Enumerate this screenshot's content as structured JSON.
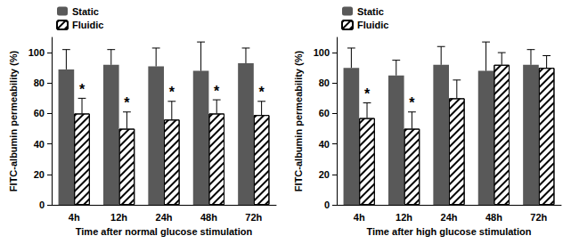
{
  "chart_data": [
    {
      "type": "bar",
      "xlabel": "Time after normal glucose stimulation",
      "ylabel": "FITC-albumin permeability (%)",
      "categories": [
        "4h",
        "12h",
        "24h",
        "48h",
        "72h"
      ],
      "series": [
        {
          "name": "Static",
          "color": "#595959",
          "values": [
            89,
            92,
            91,
            88,
            93
          ],
          "errors": [
            13,
            10,
            12,
            19,
            10
          ]
        },
        {
          "name": "Fluidic",
          "color": "#ffffff",
          "marker": "hatch",
          "values": [
            60,
            50,
            56,
            60,
            59
          ],
          "errors": [
            10,
            11,
            12,
            9,
            9
          ],
          "annotations": [
            "*",
            "*",
            "*",
            "*",
            "*"
          ]
        }
      ],
      "ylim": [
        0,
        110
      ],
      "yticks": [
        0,
        20,
        40,
        60,
        80,
        100
      ],
      "grid": false,
      "legend": "top-left"
    },
    {
      "type": "bar",
      "xlabel": "Time after high glucose stimulation",
      "ylabel": "FITC-albumin permeability (%)",
      "categories": [
        "4h",
        "12h",
        "24h",
        "48h",
        "72h"
      ],
      "series": [
        {
          "name": "Static",
          "color": "#595959",
          "values": [
            90,
            85,
            92,
            88,
            92
          ],
          "errors": [
            13,
            10,
            12,
            19,
            10
          ]
        },
        {
          "name": "Fluidic",
          "color": "#ffffff",
          "marker": "hatch",
          "values": [
            57,
            50,
            70,
            92,
            90
          ],
          "errors": [
            10,
            11,
            12,
            8,
            8
          ],
          "annotations": [
            "*",
            "*",
            null,
            null,
            null
          ]
        }
      ],
      "ylim": [
        0,
        110
      ],
      "yticks": [
        0,
        20,
        40,
        60,
        80,
        100
      ],
      "grid": false,
      "legend": "top-left"
    }
  ]
}
